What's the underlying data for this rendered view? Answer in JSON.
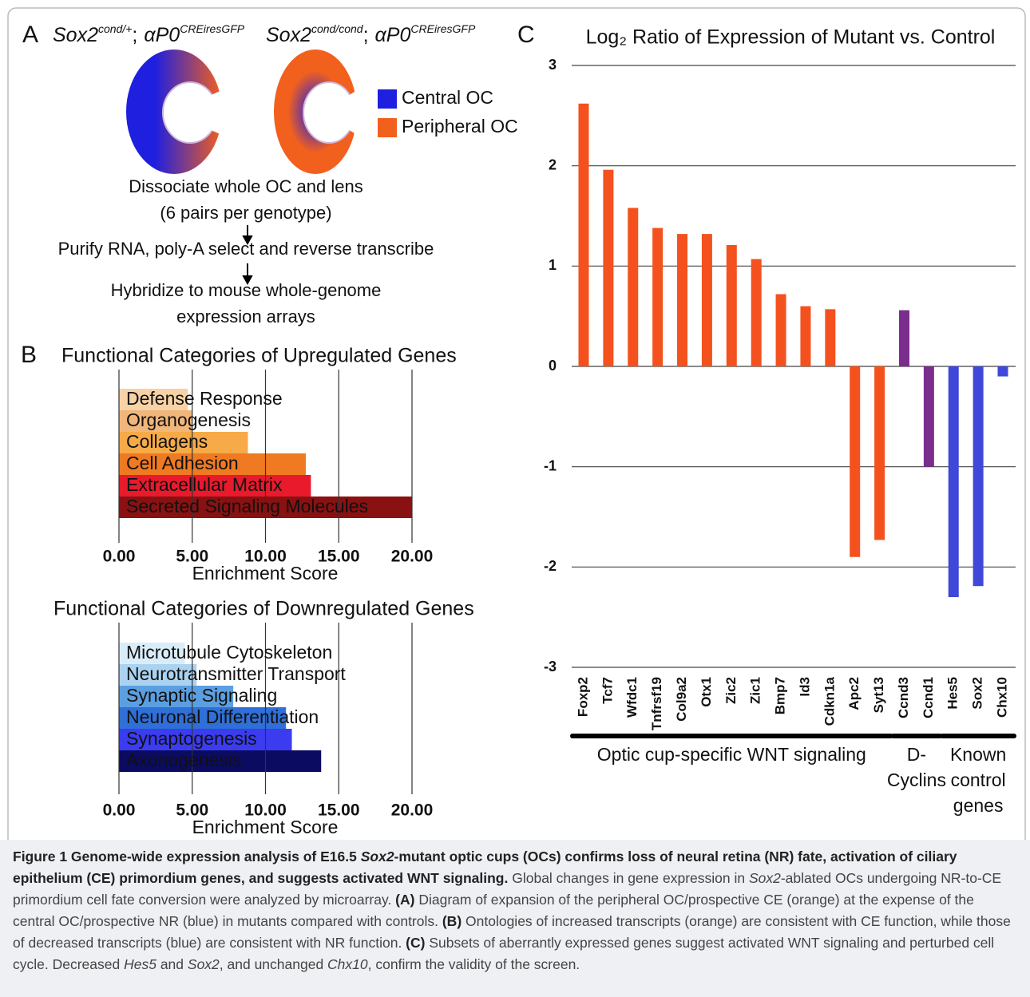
{
  "panel_a": {
    "label": "A",
    "genotypes": [
      {
        "gene": "Sox2",
        "gene_sup": "cond/+",
        "separator": ";",
        "driver": "αP0",
        "driver_sup": "CREiresGFP"
      },
      {
        "gene": "Sox2",
        "gene_sup": "cond/cond",
        "separator": ";",
        "driver": "αP0",
        "driver_sup": "CREiresGFP"
      }
    ],
    "legend": [
      {
        "name": "Central OC",
        "color": "#1f1fe0"
      },
      {
        "name": "Peripheral OC",
        "color": "#f2601e"
      }
    ],
    "steps": [
      "Dissociate whole OC and lens",
      "(6 pairs per genotype)",
      "Purify RNA, poly-A select and reverse transcribe",
      "Hybridize to mouse whole-genome",
      "expression arrays"
    ]
  },
  "panel_b": {
    "label": "B"
  },
  "panel_c": {
    "label": "C"
  },
  "chart_data": [
    {
      "type": "hbar",
      "title": "Functional Categories of Upregulated Genes",
      "categories": [
        "Defense Response",
        "Organogenesis",
        "Collagens",
        "Cell Adhesion",
        "Extracellular Matrix",
        "Secreted Signaling Molecules"
      ],
      "values": [
        4.7,
        5.0,
        8.8,
        12.75,
        13.1,
        20.0
      ],
      "colors": [
        "#f6d2a6",
        "#f1b67a",
        "#f7aa48",
        "#f07a22",
        "#e81a2c",
        "#8a1111"
      ],
      "xlim": [
        0,
        20
      ],
      "xticks": [
        {
          "value": 0,
          "label": "0.00"
        },
        {
          "value": 5,
          "label": "5.00"
        },
        {
          "value": 10,
          "label": "10.00"
        },
        {
          "value": 15,
          "label": "15.00"
        },
        {
          "value": 20,
          "label": "20.00"
        }
      ],
      "xlabel": "Enrichment Score",
      "grid": true
    },
    {
      "type": "hbar",
      "title": "Functional Categories of Downregulated Genes",
      "categories": [
        "Microtubule Cytoskeleton",
        "Neurotransmitter Transport",
        "Synaptic Signaling",
        "Neuronal Differentiation",
        "Synaptogenesis",
        "Axonogenesis"
      ],
      "values": [
        4.5,
        5.3,
        7.8,
        11.4,
        11.8,
        13.8
      ],
      "colors": [
        "#d9edf9",
        "#abd3f1",
        "#5b9fe1",
        "#2f6fd8",
        "#3b3cf0",
        "#0b0b62"
      ],
      "xlim": [
        0,
        20
      ],
      "xticks": [
        {
          "value": 0,
          "label": "0.00"
        },
        {
          "value": 5,
          "label": "5.00"
        },
        {
          "value": 10,
          "label": "10.00"
        },
        {
          "value": 15,
          "label": "15.00"
        },
        {
          "value": 20,
          "label": "20.00"
        }
      ],
      "xlabel": "Enrichment Score",
      "grid": true
    },
    {
      "type": "bar",
      "title": "Log₂ Ratio of Expression of Mutant vs. Control",
      "categories": [
        "Foxp2",
        "Tcf7",
        "Wfdc1",
        "Tnfrsf19",
        "Col9a2",
        "Otx1",
        "Zic2",
        "Zic1",
        "Bmp7",
        "Id3",
        "Cdkn1a",
        "Apc2",
        "Syt13",
        "Ccnd3",
        "Ccnd1",
        "Hes5",
        "Sox2",
        "Chx10"
      ],
      "values": [
        2.62,
        1.96,
        1.58,
        1.38,
        1.32,
        1.32,
        1.21,
        1.07,
        0.72,
        0.6,
        0.57,
        -1.9,
        -1.73,
        0.56,
        -1.0,
        -2.3,
        -2.19,
        -0.1
      ],
      "colors": [
        "#f4511e",
        "#f4511e",
        "#f4511e",
        "#f4511e",
        "#f4511e",
        "#f4511e",
        "#f4511e",
        "#f4511e",
        "#f4511e",
        "#f4511e",
        "#f4511e",
        "#f4511e",
        "#f4511e",
        "#7b2d8e",
        "#7b2d8e",
        "#3f48d8",
        "#3f48d8",
        "#3f48d8"
      ],
      "groups": [
        [
          "Optic  cup-specific WNT signaling"
        ],
        [
          "D-",
          "Cyclins"
        ],
        [
          "Known",
          "control",
          "genes"
        ]
      ],
      "ylim": [
        -3,
        3
      ],
      "yticks": [
        3,
        2,
        1,
        0,
        -1,
        -2,
        -3
      ],
      "grid": true
    }
  ],
  "caption": [
    {
      "text": "Figure 1 Genome-wide expression analysis of E16.5 ",
      "style": "bold"
    },
    {
      "text": "Sox2",
      "style": "bold-italic"
    },
    {
      "text": "-mutant optic cups (OCs) confirms loss of neural retina (NR) fate, activation of ciliary epithelium (CE) primordium genes, and suggests activated WNT signaling.",
      "style": "bold"
    },
    {
      "text": " Global changes in gene expression in ",
      "style": "normal"
    },
    {
      "text": "Sox2",
      "style": "italic"
    },
    {
      "text": "-ablated OCs undergoing NR-to-CE primordium cell fate conversion were analyzed by microarray. ",
      "style": "normal"
    },
    {
      "text": "(A)",
      "style": "bold"
    },
    {
      "text": " Diagram of expansion of the peripheral OC/prospective CE (orange) at the expense of the central OC/prospective NR (blue) in mutants compared with controls. ",
      "style": "normal"
    },
    {
      "text": "(B)",
      "style": "bold"
    },
    {
      "text": " Ontologies of increased transcripts (orange) are consistent with CE function, while those of decreased transcripts (blue) are consistent with NR function. ",
      "style": "normal"
    },
    {
      "text": "(C)",
      "style": "bold"
    },
    {
      "text": " Subsets of aberrantly expressed genes suggest activated WNT signaling and perturbed cell cycle. Decreased ",
      "style": "normal"
    },
    {
      "text": "Hes5",
      "style": "italic"
    },
    {
      "text": " and ",
      "style": "normal"
    },
    {
      "text": "Sox2",
      "style": "italic"
    },
    {
      "text": ", and unchanged ",
      "style": "normal"
    },
    {
      "text": "Chx10",
      "style": "italic"
    },
    {
      "text": ", confirm the validity of the screen.",
      "style": "normal"
    }
  ]
}
